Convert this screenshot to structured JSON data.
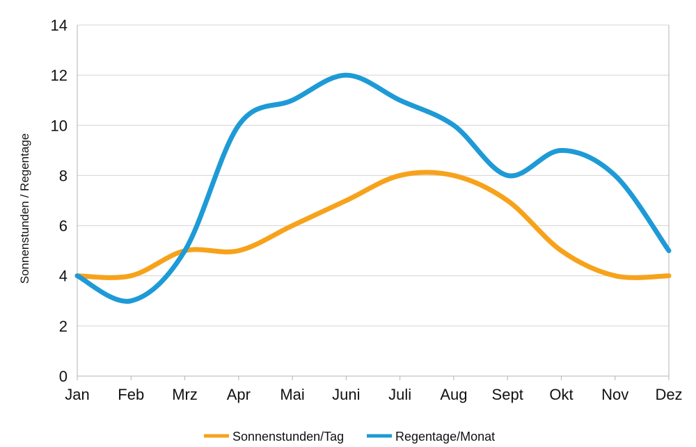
{
  "chart_data": {
    "type": "line",
    "smooth": true,
    "grid": true,
    "legend_position": "bottom",
    "ylabel": "Sonnenstunden  / Regentage",
    "xlabel": "",
    "ylim": [
      0,
      14
    ],
    "yticks": [
      0,
      2,
      4,
      6,
      8,
      10,
      12,
      14
    ],
    "categories": [
      "Jan",
      "Feb",
      "Mrz",
      "Apr",
      "Mai",
      "Juni",
      "Juli",
      "Aug",
      "Sept",
      "Okt",
      "Nov",
      "Dez"
    ],
    "series": [
      {
        "name": "Sonnenstunden/Tag",
        "color": "#F7A21B",
        "values": [
          4,
          4,
          5,
          5,
          6,
          7,
          8,
          8,
          7,
          5,
          4,
          4
        ]
      },
      {
        "name": "Regentage/Monat",
        "color": "#1E9AD6",
        "values": [
          4,
          3,
          5,
          10,
          11,
          12,
          11,
          10,
          8,
          9,
          8,
          5
        ]
      }
    ]
  }
}
